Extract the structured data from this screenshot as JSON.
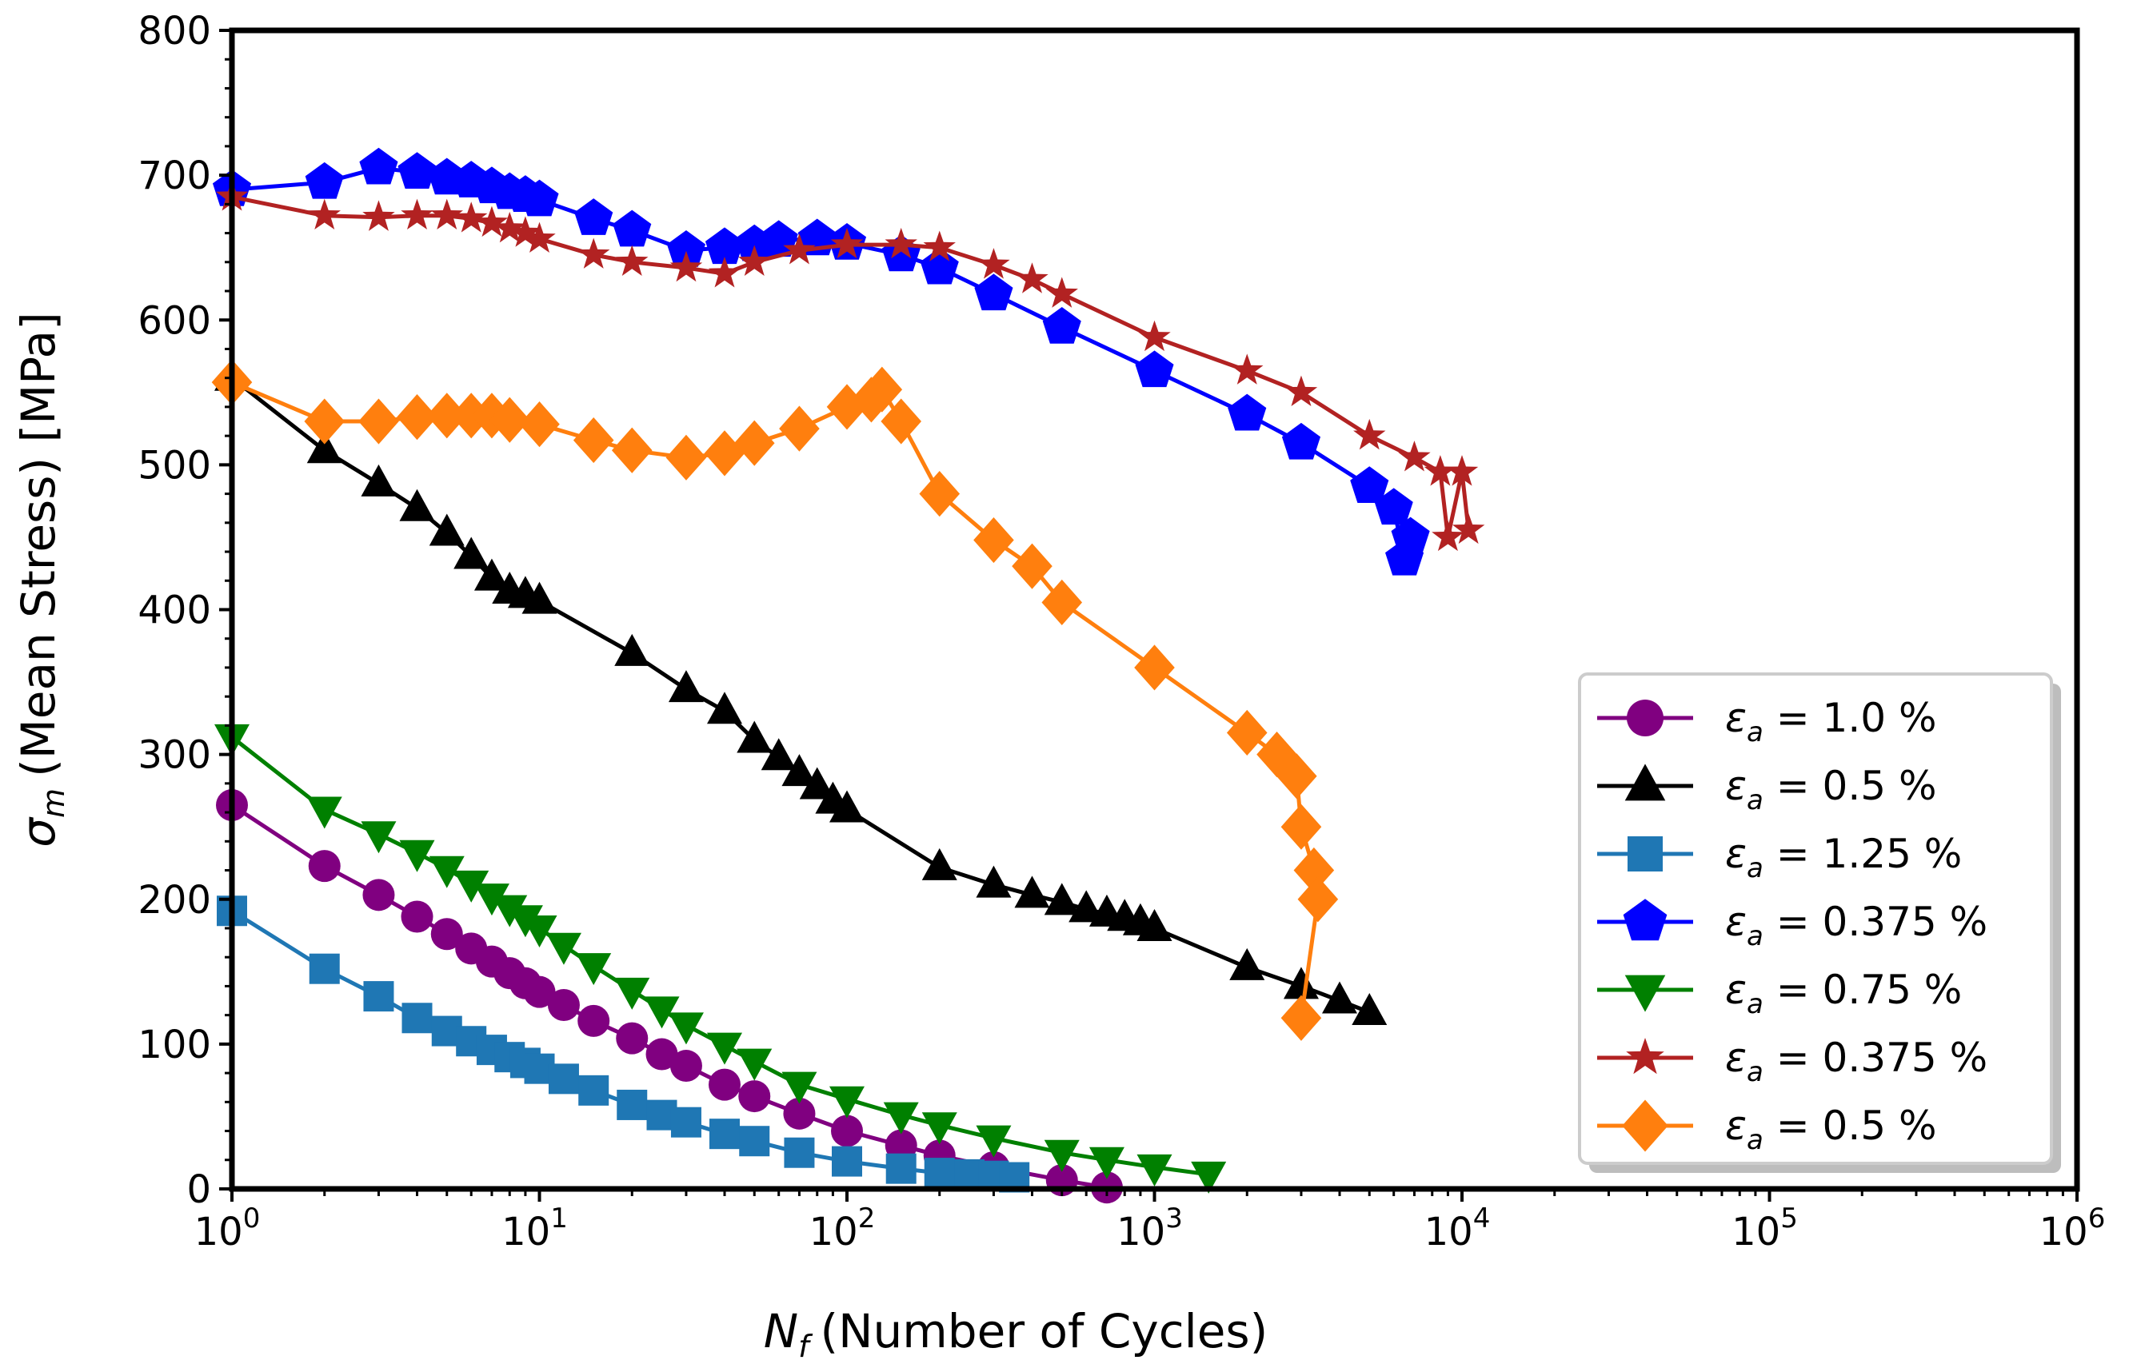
{
  "chart_data": {
    "type": "line",
    "title": "",
    "xlabel": {
      "symbol": "N",
      "subscript": "f",
      "text": "(Number of Cycles)"
    },
    "ylabel": {
      "symbol": "σ",
      "subscript": "m",
      "text": "(Mean Stress) [MPa]"
    },
    "xscale": "log",
    "xlim": [
      1,
      1000000
    ],
    "ylim": [
      0,
      800
    ],
    "x_tick_labels": [
      {
        "base": "10",
        "exp": "0"
      },
      {
        "base": "10",
        "exp": "1"
      },
      {
        "base": "10",
        "exp": "2"
      },
      {
        "base": "10",
        "exp": "3"
      },
      {
        "base": "10",
        "exp": "4"
      },
      {
        "base": "10",
        "exp": "5"
      },
      {
        "base": "10",
        "exp": "6"
      }
    ],
    "y_ticks": [
      0,
      100,
      200,
      300,
      400,
      500,
      600,
      700,
      800
    ],
    "y_tick_labels": [
      "0",
      "100",
      "200",
      "300",
      "400",
      "500",
      "600",
      "700",
      "800"
    ],
    "grid": false,
    "legend_position": "lower-right",
    "series": [
      {
        "name": "1.0 %",
        "symbol": "ε",
        "subscript": "a",
        "color": "#800080",
        "marker": "circle",
        "x": [
          1,
          2,
          3,
          4,
          5,
          6,
          7,
          8,
          9,
          10,
          12,
          15,
          20,
          25,
          30,
          40,
          50,
          70,
          100,
          150,
          200,
          300,
          500,
          700
        ],
        "y": [
          265,
          223,
          203,
          188,
          176,
          166,
          157,
          149,
          142,
          136,
          127,
          116,
          104,
          93,
          85,
          72,
          64,
          52,
          40,
          30,
          23,
          15,
          6,
          1
        ]
      },
      {
        "name": "0.5 %",
        "symbol": "ε",
        "subscript": "a",
        "color": "#000000",
        "marker": "triangle-up",
        "x": [
          1,
          2,
          3,
          4,
          5,
          6,
          7,
          8,
          9,
          10,
          20,
          30,
          40,
          50,
          60,
          70,
          80,
          90,
          100,
          200,
          300,
          400,
          500,
          600,
          700,
          800,
          900,
          1000,
          2000,
          3000,
          4000,
          5000
        ],
        "y": [
          560,
          510,
          487,
          470,
          453,
          437,
          422,
          413,
          410,
          406,
          370,
          345,
          330,
          310,
          298,
          287,
          278,
          268,
          262,
          222,
          210,
          203,
          198,
          193,
          190,
          187,
          184,
          180,
          153,
          140,
          130,
          122
        ]
      },
      {
        "name": "1.25 %",
        "symbol": "ε",
        "subscript": "a",
        "color": "#1f77b4",
        "marker": "square",
        "x": [
          1,
          2,
          3,
          4,
          5,
          6,
          7,
          8,
          9,
          10,
          12,
          15,
          20,
          25,
          30,
          40,
          50,
          70,
          100,
          150,
          200,
          250,
          300,
          350
        ],
        "y": [
          192,
          152,
          133,
          118,
          109,
          102,
          96,
          91,
          87,
          83,
          76,
          68,
          58,
          51,
          46,
          38,
          33,
          25,
          19,
          14,
          11,
          10,
          9,
          8
        ]
      },
      {
        "name": "0.375 %",
        "symbol": "ε",
        "subscript": "a",
        "color": "#0000ff",
        "marker": "pentagon",
        "x": [
          1,
          2,
          3,
          4,
          5,
          6,
          7,
          8,
          9,
          10,
          15,
          20,
          30,
          40,
          50,
          60,
          80,
          100,
          150,
          200,
          300,
          500,
          1000,
          2000,
          3000,
          5000,
          6000,
          6500,
          6800
        ],
        "y": [
          690,
          695,
          705,
          702,
          698,
          696,
          692,
          688,
          686,
          683,
          670,
          662,
          648,
          650,
          652,
          655,
          656,
          653,
          645,
          636,
          618,
          595,
          565,
          535,
          515,
          485,
          470,
          435,
          450
        ]
      },
      {
        "name": "0.75 %",
        "symbol": "ε",
        "subscript": "a",
        "color": "#008000",
        "marker": "triangle-down",
        "x": [
          1,
          2,
          3,
          4,
          5,
          6,
          7,
          8,
          9,
          10,
          12,
          15,
          20,
          25,
          30,
          40,
          50,
          70,
          100,
          150,
          200,
          300,
          500,
          700,
          1000,
          1500
        ],
        "y": [
          312,
          262,
          245,
          232,
          221,
          211,
          202,
          194,
          187,
          180,
          168,
          154,
          137,
          124,
          113,
          99,
          88,
          72,
          62,
          51,
          44,
          35,
          25,
          20,
          15,
          10
        ]
      },
      {
        "name": "0.375 %",
        "symbol": "ε",
        "subscript": "a",
        "color": "#b22222",
        "marker": "star",
        "x": [
          1,
          2,
          3,
          4,
          5,
          6,
          7,
          8,
          9,
          10,
          15,
          20,
          30,
          40,
          50,
          70,
          100,
          150,
          200,
          300,
          400,
          500,
          1000,
          2000,
          3000,
          5000,
          7000,
          8500,
          9000,
          10000,
          10500
        ],
        "y": [
          685,
          672,
          671,
          672,
          672,
          670,
          667,
          663,
          660,
          656,
          645,
          640,
          636,
          632,
          640,
          648,
          652,
          652,
          650,
          638,
          628,
          618,
          588,
          565,
          550,
          520,
          505,
          495,
          450,
          495,
          455
        ]
      },
      {
        "name": "0.5 %",
        "symbol": "ε",
        "subscript": "a",
        "color": "#ff7f0e",
        "marker": "diamond",
        "x": [
          1,
          2,
          3,
          4,
          5,
          6,
          7,
          8,
          10,
          15,
          20,
          30,
          40,
          50,
          70,
          100,
          120,
          130,
          150,
          200,
          300,
          400,
          500,
          1000,
          2000,
          2500,
          2900,
          3000,
          3300,
          3400,
          3000
        ],
        "y": [
          557,
          530,
          530,
          533,
          534,
          534,
          534,
          531,
          528,
          517,
          510,
          505,
          508,
          515,
          525,
          540,
          545,
          552,
          530,
          480,
          448,
          430,
          405,
          360,
          315,
          300,
          285,
          250,
          220,
          200,
          118
        ]
      }
    ]
  }
}
